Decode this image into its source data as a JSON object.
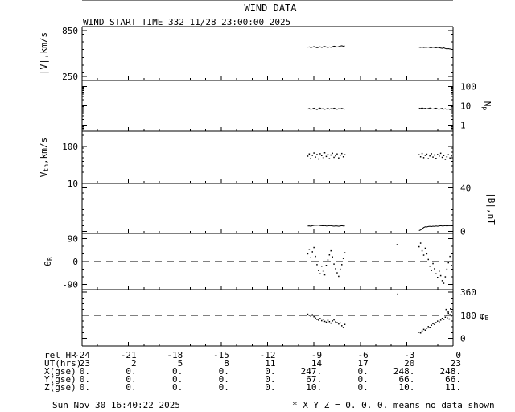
{
  "title": "WIND DATA",
  "subtitle": "WIND START TIME 332 11/28 23:00:00 2025",
  "footer_left": "Sun Nov 30 16:40:22 2025",
  "footer_right": "* X Y Z = 0. 0. 0. means no data shown",
  "colors": {
    "fg": "#000000",
    "bg": "#ffffff"
  },
  "x_axis": {
    "range": [
      -24,
      0
    ],
    "major_step": 3,
    "minor_step": 1,
    "ticks": [
      -24,
      -21,
      -18,
      -15,
      -12,
      -9,
      -6,
      -3,
      0
    ]
  },
  "ephemeris_table": {
    "rows": [
      {
        "label": "rel HR",
        "values": [
          "-24",
          "-21",
          "-18",
          "-15",
          "-12",
          "-9",
          "-6",
          "-3",
          "0"
        ]
      },
      {
        "label": "UT(hrs)",
        "values": [
          "23",
          "2",
          "5",
          "8",
          "11",
          "14",
          "17",
          "20",
          "23"
        ]
      },
      {
        "label": "X(gse)",
        "values": [
          "0.",
          "0.",
          "0.",
          "0.",
          "0.",
          "247.",
          "0.",
          "248.",
          "248."
        ]
      },
      {
        "label": "Y(gse)",
        "values": [
          "0.",
          "0.",
          "0.",
          "0.",
          "0.",
          "67.",
          "0.",
          "66.",
          "66."
        ]
      },
      {
        "label": "Z(gse)",
        "values": [
          "0.",
          "0.",
          "0.",
          "0.",
          "0.",
          "10.",
          "0.",
          "10.",
          "11."
        ]
      }
    ]
  },
  "chart_data": [
    {
      "panel": "flow-speed",
      "type": "line",
      "scale": "linear",
      "ylabel_runs": [
        {
          "t": "|V|,km/s"
        }
      ],
      "side": "left",
      "ylim": [
        200,
        900
      ],
      "minor_step": 100,
      "yticks": [
        {
          "v": 850,
          "label": "850"
        },
        {
          "v": 250,
          "label": "250"
        }
      ],
      "segments": [
        {
          "t0": -9.4,
          "dt": 0.1,
          "v": [
            630,
            636,
            626,
            632,
            640,
            631,
            624,
            629,
            637,
            628,
            633,
            641,
            634,
            627,
            635,
            630,
            638,
            645,
            640,
            633,
            639,
            646,
            650,
            644,
            648
          ]
        },
        {
          "t0": -2.2,
          "dt": 0.1,
          "v": [
            632,
            628,
            634,
            627,
            631,
            629,
            634,
            626,
            624,
            631,
            628,
            623,
            629,
            625,
            621,
            617,
            623,
            615,
            609,
            613,
            607,
            611
          ]
        }
      ]
    },
    {
      "panel": "proton-density",
      "type": "line",
      "scale": "log",
      "ylabel_runs": [
        {
          "t": "N"
        },
        {
          "t": "p",
          "sub": true
        }
      ],
      "side": "right",
      "ylim": [
        0.5,
        200
      ],
      "yticks": [
        {
          "v": 100,
          "label": "100"
        },
        {
          "v": 10,
          "label": "10"
        },
        {
          "v": 1,
          "label": "1"
        }
      ],
      "segments": [
        {
          "t0": -9.4,
          "dt": 0.1,
          "v": [
            6.8,
            7.3,
            6.5,
            7.0,
            7.6,
            6.9,
            6.4,
            7.1,
            7.7,
            6.8,
            7.3,
            6.6,
            7.0,
            7.5,
            6.7,
            7.2,
            6.9,
            7.6,
            7.1,
            6.6,
            7.2,
            6.8,
            7.4,
            7.0,
            6.7
          ]
        },
        {
          "t0": -2.2,
          "dt": 0.1,
          "v": [
            7.6,
            7.2,
            7.9,
            7.1,
            7.5,
            6.9,
            7.3,
            7.7,
            7.1,
            6.8,
            7.3,
            7.6,
            6.9,
            6.6,
            7.1,
            7.4,
            6.7,
            7.1,
            6.5,
            6.9,
            6.4,
            6.8
          ]
        }
      ]
    },
    {
      "panel": "thermal-speed",
      "type": "scatter",
      "scale": "log",
      "ylabel_runs": [
        {
          "t": "V"
        },
        {
          "t": "th",
          "sub": true
        },
        {
          "t": ",km/s"
        }
      ],
      "side": "left",
      "ylim": [
        10,
        260
      ],
      "yticks": [
        {
          "v": 100,
          "label": "100"
        },
        {
          "v": 10,
          "label": "10"
        }
      ],
      "segments": [
        {
          "t0": -9.4,
          "dt": 0.1,
          "v": [
            55,
            63,
            48,
            58,
            67,
            52,
            61,
            46,
            64,
            57,
            50,
            68,
            54,
            61,
            47,
            59,
            66,
            51,
            56,
            63,
            49,
            58,
            65,
            53,
            60
          ]
        },
        {
          "t0": -2.2,
          "dt": 0.1,
          "v": [
            60,
            53,
            65,
            50,
            58,
            62,
            47,
            56,
            64,
            52,
            59,
            48,
            61,
            55,
            66,
            51,
            57,
            45,
            53,
            60,
            49,
            56
          ]
        }
      ]
    },
    {
      "panel": "field-magnitude",
      "type": "line",
      "scale": "linear",
      "ylabel_runs": [
        {
          "t": "|B|,nT"
        }
      ],
      "side": "right",
      "ylim": [
        -2,
        44
      ],
      "minor_step": 5,
      "yticks": [
        {
          "v": 40,
          "label": "40"
        },
        {
          "v": 0,
          "label": "0"
        }
      ],
      "segments": [
        {
          "t0": -9.4,
          "dt": 0.1,
          "v": [
            4.8,
            5.0,
            4.6,
            5.1,
            5.4,
            5.6,
            5.5,
            5.7,
            5.3,
            5.1,
            5.0,
            5.2,
            4.8,
            5.0,
            5.3,
            5.1,
            4.9,
            4.7,
            5.0,
            4.8,
            4.6,
            4.9,
            5.1,
            4.8,
            5.0
          ]
        },
        {
          "t0": -2.2,
          "dt": 0.1,
          "v": [
            0.6,
            1.2,
            2.2,
            3.4,
            4.1,
            3.9,
            4.4,
            4.6,
            4.3,
            4.7,
            4.5,
            4.8,
            4.6,
            4.9,
            5.1,
            4.8,
            5.0,
            5.2,
            4.9,
            5.1,
            5.3,
            5.1
          ]
        }
      ]
    },
    {
      "panel": "theta-b",
      "type": "scatter",
      "scale": "linear",
      "ylabel_runs": [
        {
          "t": "θ"
        },
        {
          "t": "B",
          "sub": true
        }
      ],
      "side": "left",
      "ylim": [
        -110,
        110
      ],
      "minor_step": 30,
      "dashed_at": 0,
      "yticks": [
        {
          "v": 90,
          "label": "90"
        },
        {
          "v": 0,
          "label": "0"
        },
        {
          "v": -90,
          "label": "-90"
        }
      ],
      "segments": [
        {
          "t0": -9.4,
          "dt": 0.1,
          "v": [
            30,
            48,
            15,
            38,
            55,
            20,
            -12,
            -35,
            -48,
            -18,
            -38,
            -52,
            -15,
            6,
            26,
            42,
            18,
            -10,
            -28,
            -44,
            -58,
            -30,
            -12,
            12,
            34
          ]
        },
        {
          "t0": -3.62,
          "dt": 0.1,
          "v": [
            66
          ]
        },
        {
          "t0": -2.2,
          "dt": 0.1,
          "v": [
            58,
            72,
            42,
            25,
            52,
            30,
            8,
            -18,
            -35,
            -8,
            -28,
            -48,
            -62,
            -38,
            -55,
            -75,
            -85,
            -60,
            -30,
            -5,
            20,
            -15
          ]
        }
      ]
    },
    {
      "panel": "phi-b",
      "type": "scatter",
      "scale": "linear",
      "ylabel_runs": [
        {
          "t": "φ"
        },
        {
          "t": "B",
          "sub": true
        }
      ],
      "side": "right",
      "ylabel_rotate": false,
      "ylim": [
        -60,
        380
      ],
      "minor_step": 45,
      "dashed_at": 180,
      "yticks": [
        {
          "v": 360,
          "label": "360"
        },
        {
          "v": 180,
          "label": "180"
        },
        {
          "v": 0,
          "label": "0"
        }
      ],
      "segments": [
        {
          "t0": -9.4,
          "dt": 0.1,
          "v": [
            188,
            180,
            172,
            184,
            168,
            158,
            148,
            142,
            154,
            138,
            146,
            132,
            126,
            140,
            130,
            118,
            136,
            144,
            128,
            122,
            112,
            120,
            98,
            85,
            108
          ]
        },
        {
          "t0": -3.58,
          "dt": 0.1,
          "v": [
            345
          ]
        },
        {
          "t0": -2.2,
          "dt": 0.1,
          "v": [
            48,
            42,
            58,
            70,
            64,
            80,
            92,
            86,
            102,
            114,
            108,
            122,
            134,
            128,
            142,
            155,
            148,
            165,
            178,
            195,
            185,
            205
          ]
        },
        {
          "t0": -0.45,
          "dt": 0.07,
          "v": [
            225,
            160,
            205,
            150,
            230,
            175
          ]
        }
      ]
    }
  ]
}
